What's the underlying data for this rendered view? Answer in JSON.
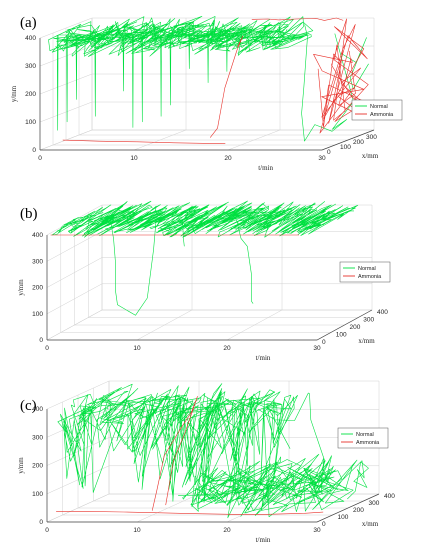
{
  "chart_data": [
    {
      "type": "line",
      "panel_label": "(a)",
      "xlabel": "t/min",
      "ylabel": "y/mm",
      "zlabel": "x/mm",
      "t_ticks": [
        "0",
        "10",
        "20",
        "30"
      ],
      "y_ticks": [
        "0",
        "100",
        "200",
        "300",
        "400"
      ],
      "x_ticks": [
        "0",
        "100",
        "200",
        "300"
      ],
      "tlim": [
        0,
        30
      ],
      "ylim": [
        0,
        400
      ],
      "xlim": [
        0,
        400
      ],
      "grid": true,
      "legend_position": "right",
      "series": [
        {
          "name": "Normal",
          "color": "#00e040"
        },
        {
          "name": "Ammonia",
          "color": "#e8302a"
        }
      ]
    },
    {
      "type": "line",
      "panel_label": "(b)",
      "xlabel": "t/min",
      "ylabel": "y/mm",
      "zlabel": "x/mm",
      "t_ticks": [
        "0",
        "10",
        "20",
        "30"
      ],
      "y_ticks": [
        "0",
        "100",
        "200",
        "300",
        "400"
      ],
      "x_ticks": [
        "0",
        "100",
        "200",
        "300",
        "400"
      ],
      "tlim": [
        0,
        30
      ],
      "ylim": [
        0,
        400
      ],
      "xlim": [
        0,
        400
      ],
      "grid": true,
      "legend_position": "right",
      "series": [
        {
          "name": "Normal",
          "color": "#00e040"
        },
        {
          "name": "Ammonia",
          "color": "#e8302a"
        }
      ]
    },
    {
      "type": "line",
      "panel_label": "(c)",
      "xlabel": "t/min",
      "ylabel": "y/mm",
      "zlabel": "x/mm",
      "t_ticks": [
        "0",
        "10",
        "20",
        "30"
      ],
      "y_ticks": [
        "0",
        "100",
        "200",
        "300",
        "400"
      ],
      "x_ticks": [
        "0",
        "100",
        "200",
        "300",
        "400"
      ],
      "tlim": [
        0,
        30
      ],
      "ylim": [
        0,
        400
      ],
      "xlim": [
        0,
        400
      ],
      "grid": true,
      "legend_position": "top-right",
      "series": [
        {
          "name": "Normal",
          "color": "#00e040"
        },
        {
          "name": "Ammonia",
          "color": "#e8302a"
        }
      ]
    }
  ]
}
